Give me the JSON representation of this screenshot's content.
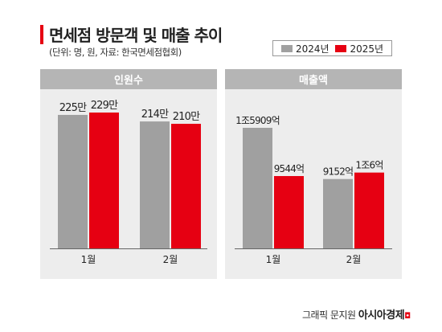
{
  "title": "면세점 방문객 및 매출 추이",
  "subtitle": "(단위: 명, 원, 자료: 한국면세점협회)",
  "legend": [
    {
      "label": "2024년",
      "color": "#a0a0a0"
    },
    {
      "label": "2025년",
      "color": "#e60012"
    }
  ],
  "credit": {
    "prefix": "그래픽 문지원",
    "brand": "아시아경제"
  },
  "chart_data": [
    {
      "type": "bar",
      "title": "인원수",
      "categories": [
        "1월",
        "2월"
      ],
      "series": [
        {
          "name": "2024년",
          "values": [
            225,
            214
          ],
          "labels": [
            "225만",
            "214만"
          ],
          "color": "#a0a0a0"
        },
        {
          "name": "2025년",
          "values": [
            229,
            210
          ],
          "labels": [
            "229만",
            "210만"
          ],
          "color": "#e60012"
        }
      ]
    },
    {
      "type": "bar",
      "title": "매출액",
      "categories": [
        "1월",
        "2월"
      ],
      "series": [
        {
          "name": "2024년",
          "values": [
            15909,
            9152
          ],
          "labels": [
            "1조5909억",
            "9152억"
          ],
          "color": "#a0a0a0"
        },
        {
          "name": "2025년",
          "values": [
            9544,
            10006
          ],
          "labels": [
            "9544억",
            "1조6억"
          ],
          "color": "#e60012"
        }
      ]
    }
  ]
}
